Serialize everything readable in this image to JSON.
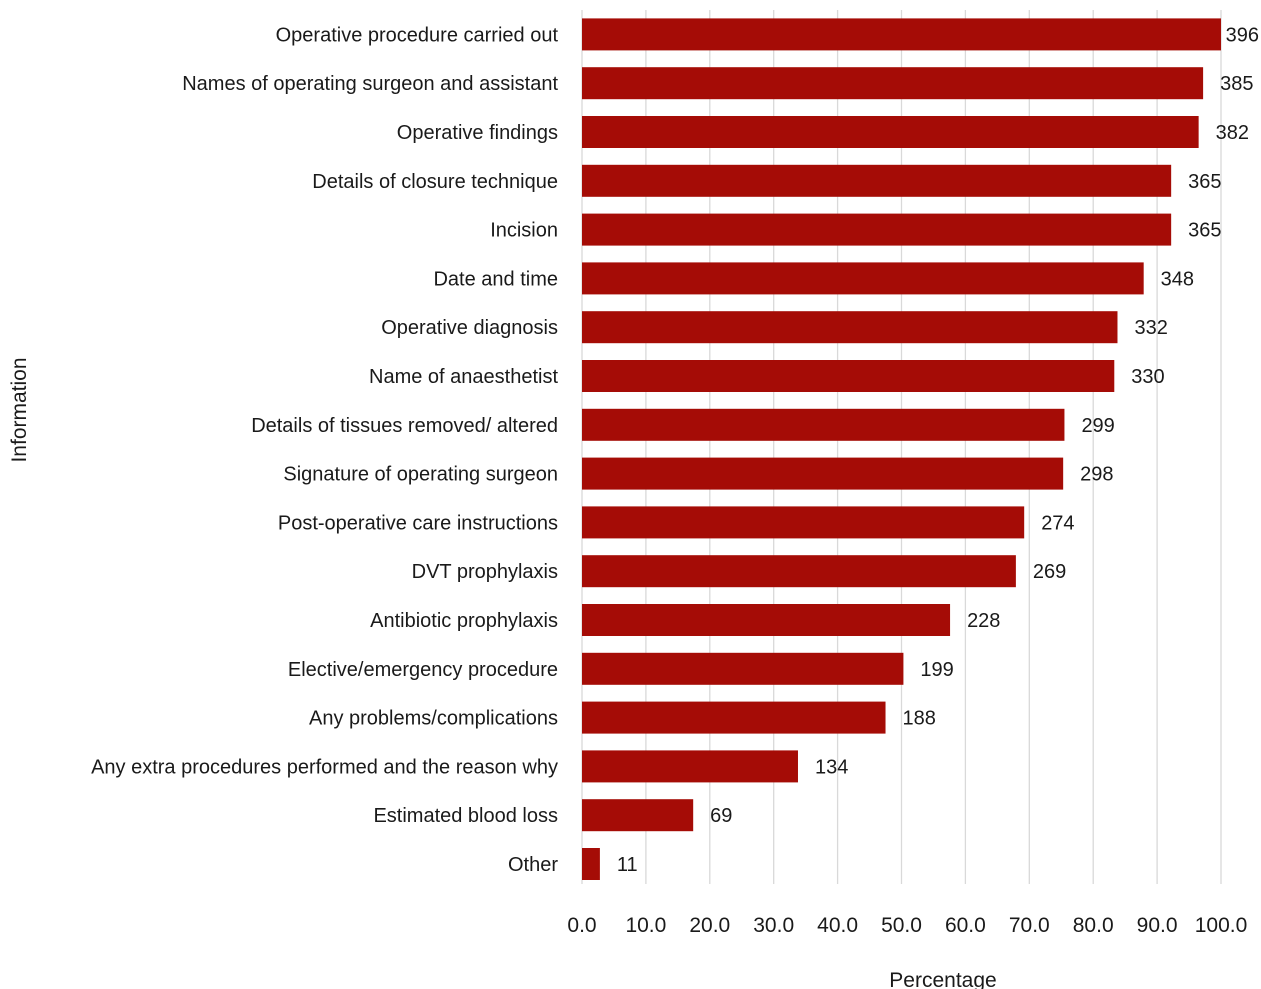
{
  "chart_data": {
    "type": "bar",
    "orientation": "horizontal",
    "xlabel": "Percentage",
    "ylabel": "Information",
    "xlim": [
      0,
      100
    ],
    "xticks": [
      "0.0",
      "10.0",
      "20.0",
      "30.0",
      "40.0",
      "50.0",
      "60.0",
      "70.0",
      "80.0",
      "90.0",
      "100.0"
    ],
    "grid": "vertical",
    "bar_color": "#A50C06",
    "categories": [
      "Operative procedure carried out",
      "Names of operating surgeon and assistant",
      "Operative findings",
      "Details of closure technique",
      "Incision",
      "Date and time",
      "Operative diagnosis",
      "Name of anaesthetist",
      "Details of tissues removed/ altered",
      "Signature of operating surgeon",
      "Post-operative care instructions",
      "DVT prophylaxis",
      "Antibiotic prophylaxis",
      "Elective/emergency procedure",
      "Any problems/complications",
      "Any extra procedures performed and the reason why",
      "Estimated blood loss",
      "Other"
    ],
    "values": [
      100.0,
      97.2,
      96.5,
      92.2,
      92.2,
      87.9,
      83.8,
      83.3,
      75.5,
      75.3,
      69.2,
      67.9,
      57.6,
      50.3,
      47.5,
      33.8,
      17.4,
      2.8
    ],
    "data_labels": [
      "396",
      "385",
      "382",
      "365",
      "365",
      "348",
      "332",
      "330",
      "299",
      "298",
      "274",
      "269",
      "228",
      "199",
      "188",
      "134",
      "69",
      "11"
    ]
  }
}
